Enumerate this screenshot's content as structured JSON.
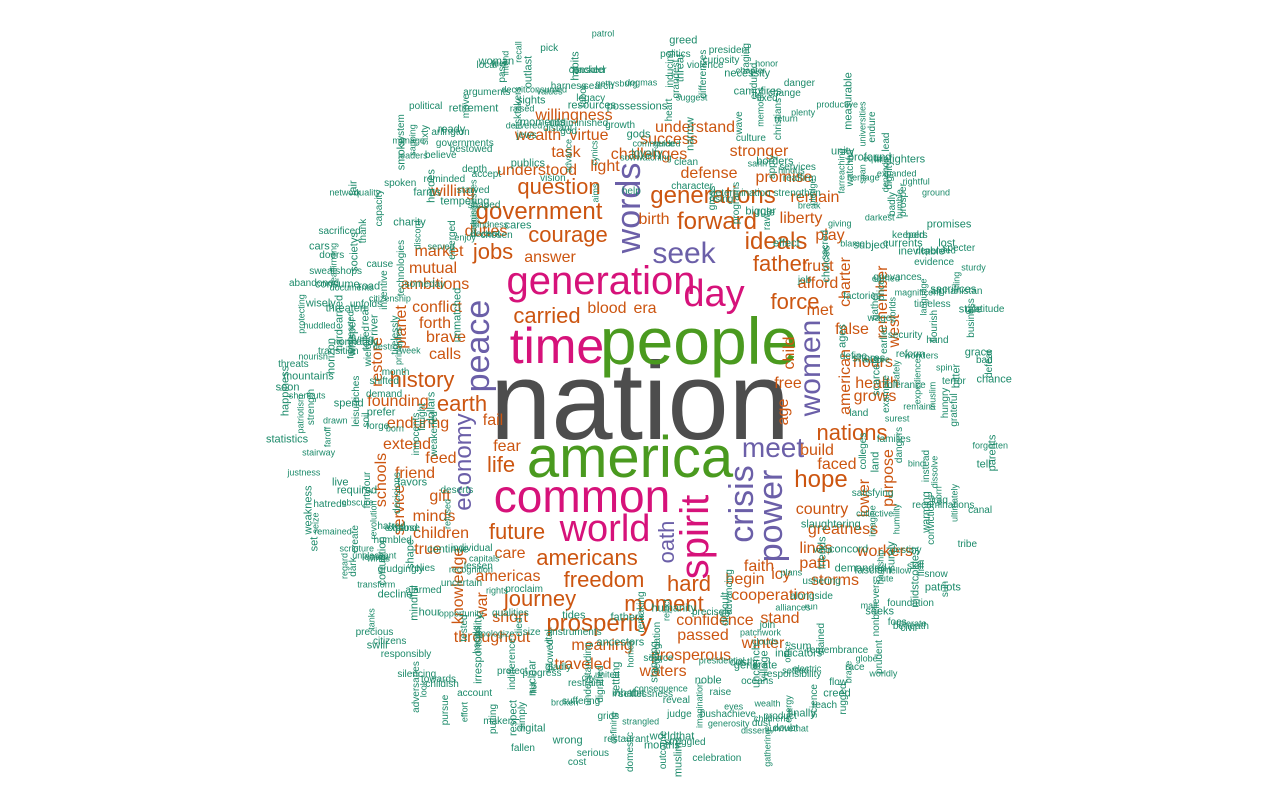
{
  "colors": {
    "gray": "#4d4d4d",
    "green": "#4a9a1f",
    "magenta": "#d6127a",
    "purple": "#6b5fa8",
    "orange": "#cc5510",
    "teal": "#1c8a6a"
  },
  "words": {
    "nation": "nation",
    "america": "america",
    "people": "people",
    "time": "time",
    "common": "common",
    "generation": "generation",
    "world": "world",
    "spirit": "spirit",
    "day": "day",
    "words": "words",
    "peace": "peace",
    "power": "power",
    "crisis": "crisis",
    "women": "women",
    "seek": "seek",
    "meet": "meet",
    "economy": "economy",
    "oath": "oath",
    "generations": "generations",
    "government": "government",
    "question": "question",
    "courage": "courage",
    "forward": "forward",
    "ideals": "ideals",
    "father": "father",
    "force": "force",
    "jobs": "jobs",
    "carried": "carried",
    "history": "history",
    "earth": "earth",
    "nations": "nations",
    "hope": "hope",
    "life": "life",
    "future": "future",
    "americans": "americans",
    "freedom": "freedom",
    "journey": "journey",
    "moment": "moment",
    "prosperity": "prosperity",
    "hard": "hard",
    "understand": "understand",
    "success": "success",
    "willingness": "willingness",
    "task": "task",
    "wealth": "wealth",
    "virtue": "virtue",
    "challenges": "challenges",
    "understood": "understood",
    "light": "light",
    "stronger": "stronger",
    "defense": "defense",
    "promise": "promise",
    "remain": "remain",
    "liberty": "liberty",
    "play": "play",
    "trust": "trust",
    "afford": "afford",
    "charter": "charter",
    "met": "met",
    "false": "false",
    "hours": "hours",
    "health": "health",
    "grows": "grows",
    "build": "build",
    "faced": "faced",
    "country": "country",
    "greatness": "greatness",
    "workers": "workers",
    "lines": "lines",
    "path": "path",
    "faith": "faith",
    "icy": "icy",
    "storms": "storms",
    "begin": "begin",
    "cooperation": "cooperation",
    "stand": "stand",
    "confidence": "confidence",
    "winter": "winter",
    "passed": "passed",
    "prosperous": "prosperous",
    "waters": "waters",
    "meaning": "meaning",
    "traveled": "traveled",
    "throughout": "throughout",
    "short": "short",
    "americas": "americas",
    "care": "care",
    "knowledge": "knowledge",
    "war": "war",
    "true": "true",
    "children": "children",
    "minds": "minds",
    "service": "service",
    "gift": "gift",
    "friend": "friend",
    "feed": "feed",
    "extend": "extend",
    "enduring": "enduring",
    "founding": "founding",
    "fear": "fear",
    "fail": "fail",
    "calls": "calls",
    "brave": "brave",
    "forth": "forth",
    "conflict": "conflict",
    "mutual": "mutual",
    "ambitions": "ambitions",
    "market": "market",
    "duties": "duties",
    "willing": "willing",
    "birth": "birth",
    "answer": "answer",
    "blood": "blood",
    "era": "era",
    "schools": "schools",
    "restore": "restore",
    "planet": "planet",
    "age": "age",
    "child": "child",
    "american": "american",
    "lower": "lower",
    "purpose": "purpose",
    "remember": "remember",
    "west": "west",
    "free": "free",
    "small": [
      "worn",
      "warming",
      "surely",
      "whip",
      "ushering",
      "slaughtering",
      "route",
      "remembrance",
      "worldly",
      "unclench",
      "village",
      "survivethat",
      "reveal",
      "presidential",
      "raise",
      "progress",
      "serious",
      "united",
      "wrong",
      "silencing",
      "proclaim",
      "protect",
      "pursue",
      "mindful",
      "precious",
      "responsibly",
      "uncertain",
      "weakness",
      "refused",
      "justness",
      "innocents",
      "fortyfour",
      "principles",
      "week",
      "whisper",
      "wisely",
      "thank",
      "protecting",
      "inventive",
      "charity",
      "heroes",
      "governments",
      "political",
      "retirement",
      "woman",
      "vision",
      "resources",
      "legacy",
      "moments",
      "guided",
      "gettysburg",
      "christians",
      "inducing",
      "president",
      "strengthen",
      "span",
      "reaffirm",
      "raw",
      "heritage",
      "giving",
      "equal",
      "earned",
      "flourish",
      "chance",
      "muslim",
      "sacrifices",
      "wonders",
      "recriminations",
      "grateful",
      "skill",
      "convictions",
      "foundation",
      "hardship",
      "patriots",
      "tolerate",
      "office",
      "fascism",
      "wealth",
      "join",
      "electric",
      "generosity",
      "settled",
      "segregation",
      "worldthat",
      "humanity",
      "digital",
      "consequence",
      "nuclear",
      "size",
      "understanding",
      "gladly",
      "adversaries",
      "died",
      "hands",
      "citizens",
      "hatreds",
      "expand",
      "required",
      "unpleasant",
      "strength",
      "obscure",
      "soil",
      "toiled",
      "horizon",
      "huddled",
      "quality",
      "unfolds",
      "farms",
      "doers",
      "capacity",
      "enjoy",
      "network",
      "system",
      "delivered",
      "cares",
      "aims",
      "recall",
      "values",
      "labor",
      "harness",
      "culture",
      "gross",
      "necessity",
      "universities",
      "services",
      "borders",
      "job",
      "ground",
      "profound",
      "subject",
      "afghanistan",
      "expanded",
      "magnificent",
      "worlds",
      "gather",
      "assure",
      "earlier",
      "hungry",
      "tribe",
      "satisfying",
      "dissolve",
      "midstcoldest",
      "civil",
      "foes",
      "beneath",
      "advancing",
      "gathering",
      "costly",
      "run",
      "creed",
      "eyes",
      "standing",
      "remaking",
      "noble",
      "grids",
      "homes",
      "city",
      "cost",
      "effort",
      "recognition",
      "qualities",
      "look",
      "hour",
      "dark",
      "swill",
      "set",
      "alarmed",
      "faroff",
      "hatred",
      "shortcuts",
      "transition",
      "shifted",
      "hardearned",
      "cause",
      "citizenship",
      "road",
      "fair",
      "businesses",
      "chosen",
      "move",
      "spoken",
      "decent",
      "believe",
      "accept",
      "advance",
      "fuel",
      "habits",
      "patrol",
      "threat",
      "violence",
      "narrow",
      "heart",
      "honor",
      "memories",
      "plenty",
      "endure",
      "badly",
      "hindus",
      "currents",
      "choices",
      "stale",
      "price",
      "bitter",
      "ages",
      "grace",
      "tell",
      "spin",
      "forgotten",
      "terror",
      "parents",
      "dangers",
      "bind",
      "plans",
      "sum",
      "prudent",
      "oceans",
      "difficult",
      "brave",
      "flow",
      "doubt",
      "months",
      "childrens",
      "bushachieve",
      "broken",
      "fathers",
      "putting",
      "defining",
      "apologize",
      "plowed",
      "makers",
      "continue",
      "corruption",
      "regard",
      "relies",
      "choose",
      "favors",
      "grudgingly",
      "prefer",
      "live",
      "born",
      "dollars",
      "nourish",
      "demand",
      "leisure",
      "discord",
      "destroy",
      "abandoned",
      "cars",
      "manage",
      "starved",
      "jews",
      "arguments",
      "nagging",
      "cynics",
      "consider",
      "publics",
      "help",
      "gods",
      "loyalty",
      "fixed",
      "rising",
      "return",
      "campfires",
      "curiosity",
      "break",
      "dignity",
      "apply",
      "evidence",
      "keepers",
      "promises",
      "humble",
      "business",
      "bold",
      "lost",
      "example",
      "defeat",
      "bad",
      "safely",
      "fellow",
      "instead",
      "firm",
      "friends",
      "alliances",
      "imagine",
      "demanded",
      "dust",
      "mall",
      "globe",
      "muslims",
      "patchwork",
      "clouds",
      "source",
      "celebration",
      "restraint",
      "dignified",
      "fist",
      "account",
      "fallen",
      "indifference",
      "tides",
      "tanks",
      "humbled",
      "deserts",
      "leave",
      "lessen",
      "shape",
      "remained",
      "decisions",
      "drawn",
      "month",
      "spend",
      "real",
      "normandy",
      "riches",
      "threaten",
      "tirelessly",
      "leaders",
      "arlington",
      "emerged",
      "shaped",
      "reminded",
      "pick",
      "distant",
      "bestowed",
      "god",
      "pass",
      "suggest",
      "politics",
      "dogmas",
      "clean",
      "commerce",
      "greed",
      "programs",
      "bigger",
      "endured",
      "lead",
      "sacred",
      "inevitable",
      "darkest",
      "define",
      "blame",
      "security",
      "language",
      "tolerance",
      "colleges",
      "scarcely",
      "humility",
      "destiny",
      "iraq",
      "concord",
      "collective",
      "seeks",
      "stained",
      "reach",
      "race",
      "energy",
      "alongside",
      "dissent",
      "science",
      "outcome",
      "selflessness",
      "settling",
      "inhabit",
      "ancestors",
      "domestic",
      "strangled",
      "simply",
      "instruments",
      "capitals",
      "childish",
      "towards",
      "winds",
      "rights",
      "decline",
      "create",
      "forge",
      "fought",
      "statistics",
      "threats",
      "happiness",
      "river",
      "mountains",
      "soon",
      "technologies",
      "fainthearted",
      "consume",
      "documents",
      "ready",
      "smoke",
      "sixty",
      "kindness",
      "local",
      "deceitconsumed",
      "depth",
      "intend",
      "outlast",
      "sowwatching",
      "undiminished",
      "raging",
      "determination",
      "change",
      "differences",
      "danger",
      "firefighters",
      "prosper",
      "sahn",
      "farreaching",
      "depended",
      "depends",
      "factories",
      "grievances",
      "shores",
      "timeless",
      "reform",
      "gratitude",
      "expediences",
      "families",
      "land",
      "surest",
      "ultimately",
      "sun",
      "snow",
      "nonbelievers",
      "indicators",
      "finally",
      "generate",
      "precisely",
      "rugged",
      "struggled",
      "responsibility",
      "product",
      "imagination",
      "judge",
      "reject",
      "vital",
      "restaurant",
      "tested",
      "suffering",
      "respect",
      "irresponsibility",
      "individual",
      "opportunity",
      "seize",
      "transform",
      "weakened",
      "revolution",
      "patriotism",
      "scripture",
      "stairway",
      "wield",
      "sweatshops",
      "dying",
      "reaffirming",
      "unmatched",
      "someday",
      "sacrificed",
      "served",
      "societys",
      "tempering",
      "sapping",
      "risktakers",
      "sights",
      "packed",
      "raised",
      "search",
      "possessions",
      "growth",
      "chapter",
      "grandest",
      "wave",
      "character",
      "measurable",
      "unity",
      "productive",
      "pledge",
      "watchful",
      "rule",
      "effect",
      "rightful",
      "wage",
      "sturdy",
      "remains",
      "specter",
      "cling",
      "hand",
      "canal",
      "land"
    ]
  }
}
